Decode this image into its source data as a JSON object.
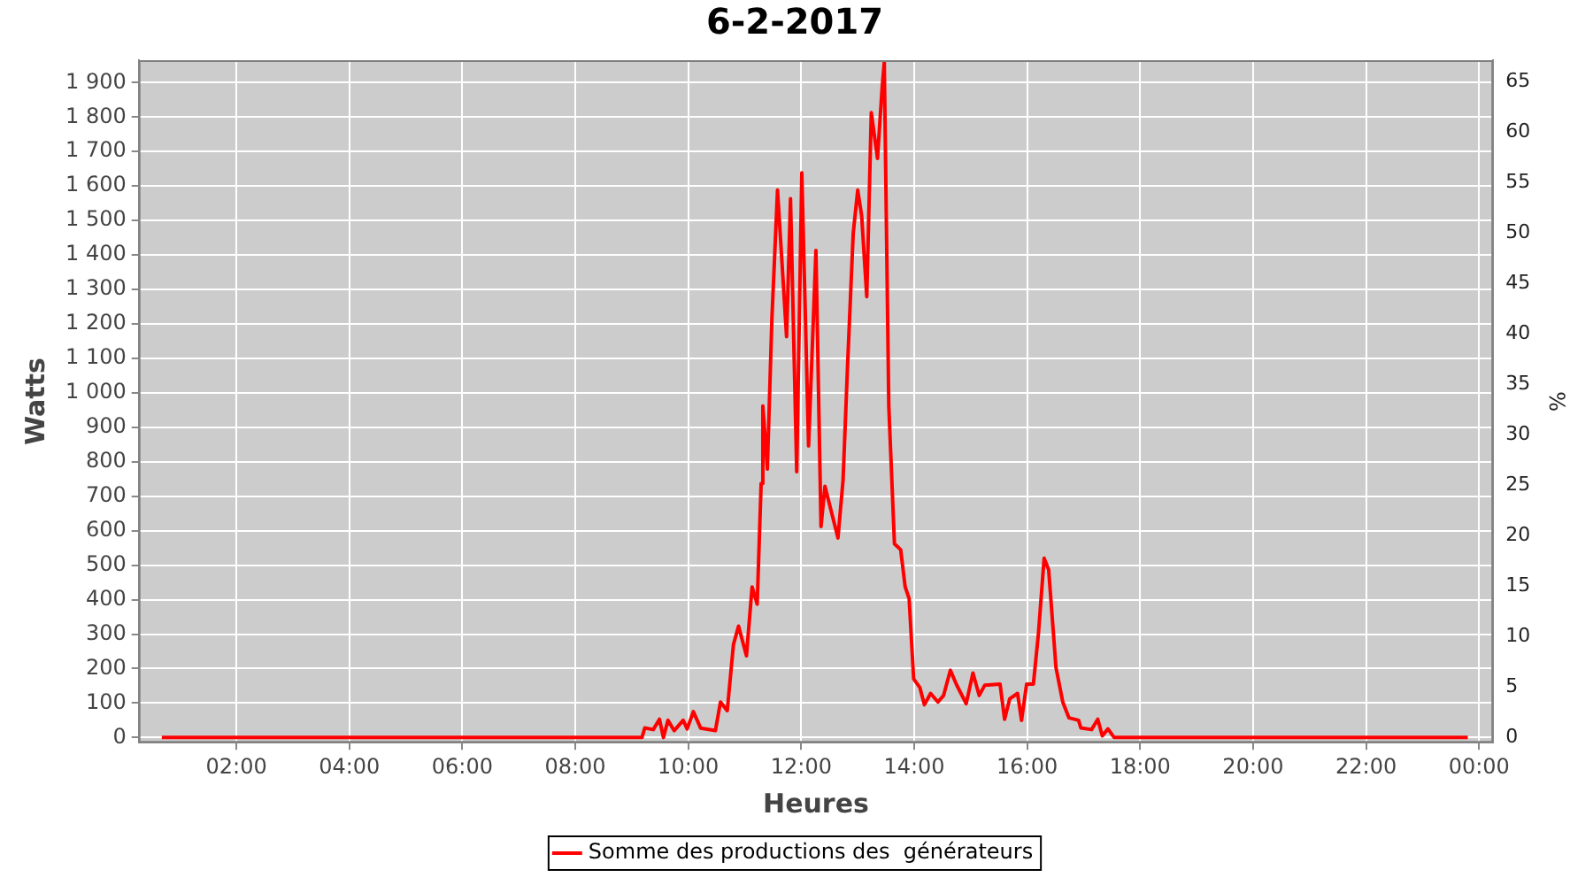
{
  "chart_data": {
    "type": "line",
    "title": "6-2-2017",
    "xlabel": "Heures",
    "ylabel": "Watts",
    "y2label": "%",
    "xlim": [
      0.27,
      24.25
    ],
    "xticks": [
      {
        "value": 2,
        "label": "02:00"
      },
      {
        "value": 4,
        "label": "04:00"
      },
      {
        "value": 6,
        "label": "06:00"
      },
      {
        "value": 8,
        "label": "08:00"
      },
      {
        "value": 10,
        "label": "10:00"
      },
      {
        "value": 12,
        "label": "12:00"
      },
      {
        "value": 14,
        "label": "14:00"
      },
      {
        "value": 16,
        "label": "16:00"
      },
      {
        "value": 18,
        "label": "18:00"
      },
      {
        "value": 20,
        "label": "20:00"
      },
      {
        "value": 22,
        "label": "22:00"
      },
      {
        "value": 24,
        "label": "00:00"
      }
    ],
    "ylim": [
      -15,
      1965
    ],
    "yticks": [
      0,
      100,
      200,
      300,
      400,
      500,
      600,
      700,
      800,
      900,
      {
        "value": 1000,
        "label": "1 000"
      },
      {
        "value": 1100,
        "label": "1 100"
      },
      {
        "value": 1200,
        "label": "1 200"
      },
      {
        "value": 1300,
        "label": "1 300"
      },
      {
        "value": 1400,
        "label": "1 400"
      },
      {
        "value": 1500,
        "label": "1 500"
      },
      {
        "value": 1600,
        "label": "1 600"
      },
      {
        "value": 1700,
        "label": "1 700"
      },
      {
        "value": 1800,
        "label": "1 800"
      },
      {
        "value": 1900,
        "label": "1 900"
      }
    ],
    "y2lim": [
      -0.51,
      67.1
    ],
    "y2ticks": [
      0,
      5,
      10,
      15,
      20,
      25,
      30,
      35,
      40,
      45,
      50,
      55,
      60,
      65
    ],
    "grid": true,
    "legend": "bottom",
    "marker": "none",
    "line_style": "solid",
    "series": [
      {
        "name": "Somme des productions des  générateurs",
        "color": "#ff0000",
        "x": [
          0.68,
          2,
          4,
          6,
          8,
          9.18,
          9.23,
          9.38,
          9.49,
          9.56,
          9.64,
          9.75,
          9.91,
          9.98,
          10.09,
          10.22,
          10.48,
          10.57,
          10.69,
          10.8,
          10.89,
          11.03,
          11.13,
          11.22,
          11.29,
          11.32,
          11.4,
          11.48,
          11.58,
          11.74,
          11.81,
          11.92,
          12.01,
          12.13,
          12.26,
          12.35,
          12.42,
          12.65,
          12.74,
          12.82,
          12.92,
          13.0,
          13.07,
          13.16,
          13.24,
          13.35,
          13.43,
          13.47,
          13.55,
          13.65,
          13.76,
          13.84,
          13.91,
          13.99,
          14.1,
          14.18,
          14.29,
          14.42,
          14.52,
          14.64,
          14.75,
          14.92,
          15.04,
          15.15,
          15.25,
          15.52,
          15.6,
          15.69,
          15.83,
          15.9,
          15.99,
          16.11,
          16.2,
          16.3,
          16.38,
          16.51,
          16.63,
          16.74,
          16.91,
          16.95,
          17.14,
          17.25,
          17.33,
          17.43,
          17.54,
          18,
          20,
          22,
          23.8
        ],
        "values": [
          0,
          0,
          0,
          0,
          0,
          0,
          28,
          23,
          53,
          0,
          50,
          20,
          50,
          25,
          75,
          27,
          20,
          103,
          78,
          270,
          323,
          237,
          437,
          387,
          737,
          962,
          779,
          1213,
          1588,
          1163,
          1563,
          771,
          1638,
          846,
          1413,
          612,
          729,
          579,
          746,
          1079,
          1463,
          1588,
          1513,
          1279,
          1813,
          1680,
          1880,
          1960,
          962,
          562,
          545,
          437,
          403,
          170,
          145,
          95,
          128,
          103,
          122,
          195,
          153,
          98,
          187,
          122,
          152,
          155,
          53,
          112,
          128,
          50,
          155,
          155,
          303,
          520,
          487,
          203,
          103,
          57,
          50,
          28,
          23,
          53,
          5,
          25,
          0,
          0,
          0,
          0,
          0
        ]
      }
    ]
  }
}
